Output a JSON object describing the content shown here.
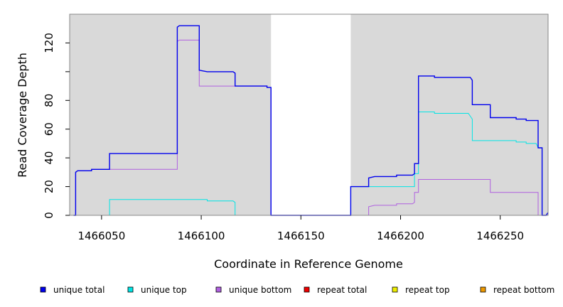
{
  "chart_data": {
    "type": "line",
    "title": "",
    "xlabel": "Coordinate in Reference Genome",
    "ylabel": "Read Coverage Depth",
    "xlim": [
      1466034,
      1466274
    ],
    "ylim": [
      0,
      140
    ],
    "x_ticks": [
      1466050,
      1466100,
      1466150,
      1466200,
      1466250
    ],
    "y_ticks": [
      0,
      20,
      40,
      60,
      80,
      100,
      120
    ],
    "y_tick_labels": [
      "0",
      "20",
      "40",
      "60",
      "80",
      "",
      "120"
    ],
    "shaded_regions": [
      [
        1466034,
        1466135
      ],
      [
        1466175,
        1466274
      ]
    ],
    "legend_position": "bottom",
    "series": [
      {
        "name": "unique total",
        "color": "#0000ee",
        "points": [
          [
            1466036,
            0
          ],
          [
            1466037,
            0
          ],
          [
            1466037,
            30
          ],
          [
            1466038,
            31
          ],
          [
            1466045,
            31
          ],
          [
            1466045,
            32
          ],
          [
            1466054,
            32
          ],
          [
            1466054,
            43
          ],
          [
            1466088,
            43
          ],
          [
            1466088,
            131
          ],
          [
            1466089,
            132
          ],
          [
            1466099,
            132
          ],
          [
            1466099,
            101
          ],
          [
            1466103,
            100
          ],
          [
            1466116,
            100
          ],
          [
            1466117,
            99
          ],
          [
            1466117,
            90
          ],
          [
            1466133,
            90
          ],
          [
            1466133,
            89
          ],
          [
            1466135,
            89
          ],
          [
            1466135,
            0
          ],
          [
            1466175,
            0
          ],
          [
            1466175,
            20
          ],
          [
            1466184,
            20
          ],
          [
            1466184,
            26
          ],
          [
            1466187,
            27
          ],
          [
            1466198,
            27
          ],
          [
            1466198,
            28
          ],
          [
            1466206,
            28
          ],
          [
            1466207,
            29
          ],
          [
            1466207,
            36
          ],
          [
            1466209,
            36
          ],
          [
            1466209,
            97
          ],
          [
            1466217,
            97
          ],
          [
            1466217,
            96
          ],
          [
            1466235,
            96
          ],
          [
            1466236,
            94
          ],
          [
            1466236,
            77
          ],
          [
            1466245,
            77
          ],
          [
            1466245,
            68
          ],
          [
            1466258,
            68
          ],
          [
            1466258,
            67
          ],
          [
            1466263,
            67
          ],
          [
            1466263,
            66
          ],
          [
            1466269,
            66
          ],
          [
            1466269,
            47
          ],
          [
            1466271,
            47
          ],
          [
            1466271,
            0
          ],
          [
            1466273,
            0
          ],
          [
            1466274,
            2
          ]
        ]
      },
      {
        "name": "unique top",
        "color": "#00e5e5",
        "points": [
          [
            1466036,
            0
          ],
          [
            1466054,
            0
          ],
          [
            1466054,
            11
          ],
          [
            1466103,
            11
          ],
          [
            1466103,
            10
          ],
          [
            1466116,
            10
          ],
          [
            1466117,
            9
          ],
          [
            1466117,
            0
          ],
          [
            1466175,
            0
          ],
          [
            1466175,
            20
          ],
          [
            1466207,
            20
          ],
          [
            1466207,
            29
          ],
          [
            1466209,
            29
          ],
          [
            1466209,
            72
          ],
          [
            1466217,
            72
          ],
          [
            1466217,
            71
          ],
          [
            1466234,
            71
          ],
          [
            1466236,
            67
          ],
          [
            1466236,
            52
          ],
          [
            1466258,
            52
          ],
          [
            1466258,
            51
          ],
          [
            1466263,
            51
          ],
          [
            1466263,
            50
          ],
          [
            1466268,
            50
          ],
          [
            1466269,
            47
          ],
          [
            1466271,
            47
          ],
          [
            1466271,
            0
          ],
          [
            1466274,
            0
          ]
        ]
      },
      {
        "name": "unique bottom",
        "color": "#b060e0",
        "points": [
          [
            1466036,
            0
          ],
          [
            1466037,
            0
          ],
          [
            1466037,
            30
          ],
          [
            1466038,
            31
          ],
          [
            1466045,
            31
          ],
          [
            1466045,
            32
          ],
          [
            1466088,
            32
          ],
          [
            1466088,
            121
          ],
          [
            1466089,
            122
          ],
          [
            1466099,
            122
          ],
          [
            1466099,
            90
          ],
          [
            1466133,
            90
          ],
          [
            1466133,
            89
          ],
          [
            1466135,
            89
          ],
          [
            1466135,
            0
          ],
          [
            1466184,
            0
          ],
          [
            1466184,
            6
          ],
          [
            1466187,
            7
          ],
          [
            1466198,
            7
          ],
          [
            1466198,
            8
          ],
          [
            1466206,
            8
          ],
          [
            1466207,
            9
          ],
          [
            1466207,
            16
          ],
          [
            1466209,
            16
          ],
          [
            1466209,
            25
          ],
          [
            1466245,
            25
          ],
          [
            1466245,
            16
          ],
          [
            1466269,
            16
          ],
          [
            1466269,
            0
          ],
          [
            1466274,
            0
          ]
        ]
      },
      {
        "name": "repeat total",
        "color": "#ee0000",
        "points": [
          [
            1466036,
            0
          ],
          [
            1466274,
            0
          ]
        ]
      },
      {
        "name": "repeat top",
        "color": "#eeee00",
        "points": [
          [
            1466036,
            0
          ],
          [
            1466274,
            0
          ]
        ]
      },
      {
        "name": "repeat bottom",
        "color": "#ee9900",
        "points": [
          [
            1466036,
            0
          ],
          [
            1466274,
            0
          ]
        ]
      }
    ]
  }
}
